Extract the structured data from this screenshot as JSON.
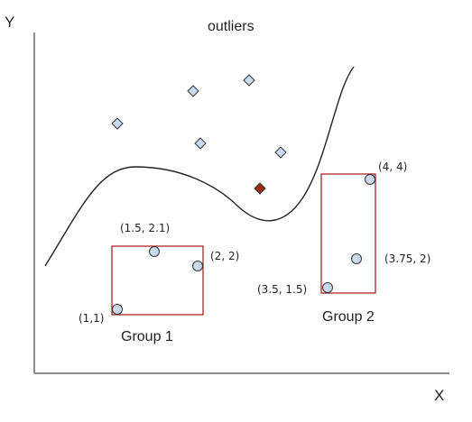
{
  "axes": {
    "x_label": "X",
    "y_label": "Y"
  },
  "title": "outliers",
  "groups": [
    {
      "name": "Group 1",
      "points": [
        "(1,1)",
        "(1.5, 2.1)",
        "(2, 2)"
      ]
    },
    {
      "name": "Group 2",
      "points": [
        "(3.5, 1.5)",
        "(3.75, 2)",
        "(4, 4)"
      ]
    }
  ],
  "outlier_count": 6,
  "colors": {
    "axis": "#444444",
    "curve": "#222222",
    "box": "#a31515",
    "point_fill": "#c9d9ee",
    "point_stroke": "#333333",
    "highlight_outlier": "#9b2a13"
  }
}
